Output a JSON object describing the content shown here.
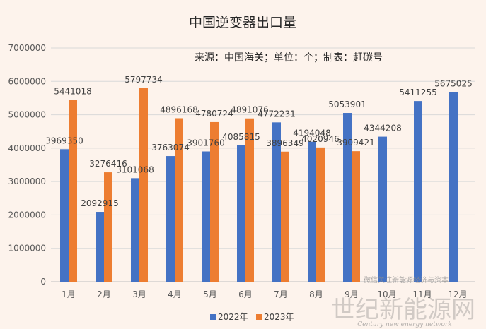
{
  "chart_data": {
    "type": "bar",
    "title": "中国逆变器出口量",
    "subtitle": "来源：中国海关；单位：个；制表：赶碳号",
    "categories": [
      "1月",
      "2月",
      "3月",
      "4月",
      "5月",
      "6月",
      "7月",
      "8月",
      "9月",
      "10月",
      "11月",
      "12月"
    ],
    "series": [
      {
        "name": "2022年",
        "color": "#4472C4",
        "values": [
          3969350,
          2092915,
          3101068,
          3763074,
          3901760,
          4085815,
          4772231,
          4194048,
          5053901,
          4344208,
          5411255,
          5675025
        ]
      },
      {
        "name": "2023年",
        "color": "#ED7D31",
        "values": [
          5441018,
          3276416,
          5797734,
          4896168,
          4780724,
          4891076,
          3896349,
          4020946,
          3909421,
          null,
          null,
          null
        ]
      }
    ],
    "ylim": [
      0,
      7000000
    ],
    "yticks": [
      0,
      1000000,
      2000000,
      3000000,
      4000000,
      5000000,
      6000000,
      7000000
    ],
    "grid": true,
    "legend": "bottom"
  },
  "watermark": {
    "main": "世纪新能源网",
    "sub": "Century new energy network",
    "tag": "微信关注新能源经济与资本"
  }
}
